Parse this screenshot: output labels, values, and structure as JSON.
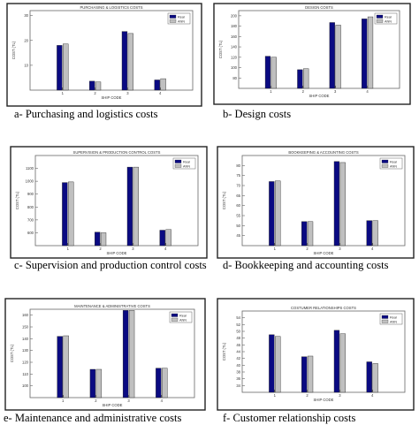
{
  "colors": {
    "real": "#0a0a82",
    "ann": "#c0c0c0",
    "frame": "#333333",
    "axis": "#555555"
  },
  "chart_data": [
    {
      "type": "bar",
      "caption": "a- Purchasing and logistics costs",
      "title": "PURCHASING & LOGISTICS COSTS",
      "xlabel": "SHIP CODE",
      "ylabel": "COST (TL)",
      "categories": [
        "1",
        "2",
        "3",
        "4"
      ],
      "ylim": [
        0,
        32
      ],
      "yticks": [
        {
          "v": 10,
          "label": "10"
        },
        {
          "v": 20,
          "label": "20"
        },
        {
          "v": 30,
          "label": "30"
        }
      ],
      "series": [
        {
          "name": "Real",
          "color": "#0a0a82",
          "values": [
            18.0,
            3.6,
            23.6,
            4.1
          ]
        },
        {
          "name": "ANN",
          "color": "#c0c0c0",
          "values": [
            18.6,
            3.3,
            22.8,
            4.6
          ]
        }
      ]
    },
    {
      "type": "bar",
      "caption": "b- Design costs",
      "title": "DESIGN COSTS",
      "xlabel": "SHIP CODE",
      "ylabel": "COST (TL)",
      "categories": [
        "1",
        "2",
        "3",
        "4"
      ],
      "ylim": [
        60,
        210
      ],
      "yticks": [
        {
          "v": 80,
          "label": "80"
        },
        {
          "v": 100,
          "label": "100"
        },
        {
          "v": 120,
          "label": "120"
        },
        {
          "v": 140,
          "label": "140"
        },
        {
          "v": 160,
          "label": "160"
        },
        {
          "v": 180,
          "label": "180"
        },
        {
          "v": 200,
          "label": "200"
        }
      ],
      "series": [
        {
          "name": "Real",
          "color": "#0a0a82",
          "values": [
            122,
            96,
            187,
            194
          ]
        },
        {
          "name": "ANN",
          "color": "#c0c0c0",
          "values": [
            120,
            98,
            182,
            198
          ]
        }
      ]
    },
    {
      "type": "bar",
      "caption": "c- Supervision  and production control costs",
      "title": "SUPERVISION & PRODUCTION CONTROL COSTS",
      "xlabel": "SHIP CODE",
      "ylabel": "COST (TL)",
      "categories": [
        "1",
        "2",
        "3",
        "4"
      ],
      "ylim": [
        500,
        1200
      ],
      "yticks": [
        {
          "v": 600,
          "label": "600"
        },
        {
          "v": 700,
          "label": "700"
        },
        {
          "v": 800,
          "label": "800"
        },
        {
          "v": 900,
          "label": "900"
        },
        {
          "v": 1000,
          "label": "1000"
        },
        {
          "v": 1100,
          "label": "1100"
        }
      ],
      "series": [
        {
          "name": "Real",
          "color": "#0a0a82",
          "values": [
            990,
            605,
            1110,
            620
          ]
        },
        {
          "name": "ANN",
          "color": "#c0c0c0",
          "values": [
            995,
            600,
            1110,
            625
          ]
        }
      ]
    },
    {
      "type": "bar",
      "caption": "d- Bookkeeping and accounting costs",
      "title": "BOOKKEEPING & ACCOUNTING COSTS",
      "xlabel": "SHIP CODE",
      "ylabel": "COST (TL)",
      "categories": [
        "1",
        "2",
        "3",
        "4"
      ],
      "ylim": [
        40,
        85
      ],
      "yticks": [
        {
          "v": 45,
          "label": "45"
        },
        {
          "v": 50,
          "label": "50"
        },
        {
          "v": 55,
          "label": "55"
        },
        {
          "v": 60,
          "label": "60"
        },
        {
          "v": 65,
          "label": "65"
        },
        {
          "v": 70,
          "label": "70"
        },
        {
          "v": 75,
          "label": "75"
        },
        {
          "v": 80,
          "label": "80"
        }
      ],
      "series": [
        {
          "name": "Real",
          "color": "#0a0a82",
          "values": [
            72,
            52,
            82,
            52.5
          ]
        },
        {
          "name": "ANN",
          "color": "#c0c0c0",
          "values": [
            72.3,
            52,
            81.5,
            52.5
          ]
        }
      ]
    },
    {
      "type": "bar",
      "caption": "e- Maintenance and administrative costs",
      "title": "MAINTENANCE & ADMINISTRATIVE COSTS",
      "xlabel": "SHIP CODE",
      "ylabel": "COST (TL)",
      "categories": [
        "1",
        "2",
        "3",
        "4"
      ],
      "ylim": [
        90,
        165
      ],
      "yticks": [
        {
          "v": 100,
          "label": "100"
        },
        {
          "v": 110,
          "label": "110"
        },
        {
          "v": 120,
          "label": "120"
        },
        {
          "v": 130,
          "label": "130"
        },
        {
          "v": 140,
          "label": "140"
        },
        {
          "v": 150,
          "label": "150"
        },
        {
          "v": 160,
          "label": "160"
        }
      ],
      "series": [
        {
          "name": "Real",
          "color": "#0a0a82",
          "values": [
            142,
            114,
            164,
            115
          ]
        },
        {
          "name": "ANN",
          "color": "#c0c0c0",
          "values": [
            142.5,
            114,
            164,
            115
          ]
        }
      ]
    },
    {
      "type": "bar",
      "caption": "f- Customer relationship costs",
      "title": "COSTUMER RELATIONSHIPS COSTS",
      "xlabel": "SHIP CODE",
      "ylabel": "COST (TL)",
      "categories": [
        "1",
        "2",
        "3",
        "4"
      ],
      "ylim": [
        32,
        56
      ],
      "yticks": [
        {
          "v": 34,
          "label": "34"
        },
        {
          "v": 36,
          "label": "36"
        },
        {
          "v": 38,
          "label": "38"
        },
        {
          "v": 40,
          "label": "40"
        },
        {
          "v": 42,
          "label": "42"
        },
        {
          "v": 44,
          "label": "44"
        },
        {
          "v": 46,
          "label": "46"
        },
        {
          "v": 48,
          "label": "48"
        },
        {
          "v": 50,
          "label": "50"
        },
        {
          "v": 52,
          "label": "52"
        },
        {
          "v": 54,
          "label": "54"
        }
      ],
      "series": [
        {
          "name": "Real",
          "color": "#0a0a82",
          "values": [
            49,
            42.5,
            50.3,
            41
          ]
        },
        {
          "name": "ANN",
          "color": "#c0c0c0",
          "values": [
            48.5,
            42.7,
            49.3,
            40.5
          ]
        }
      ]
    }
  ]
}
